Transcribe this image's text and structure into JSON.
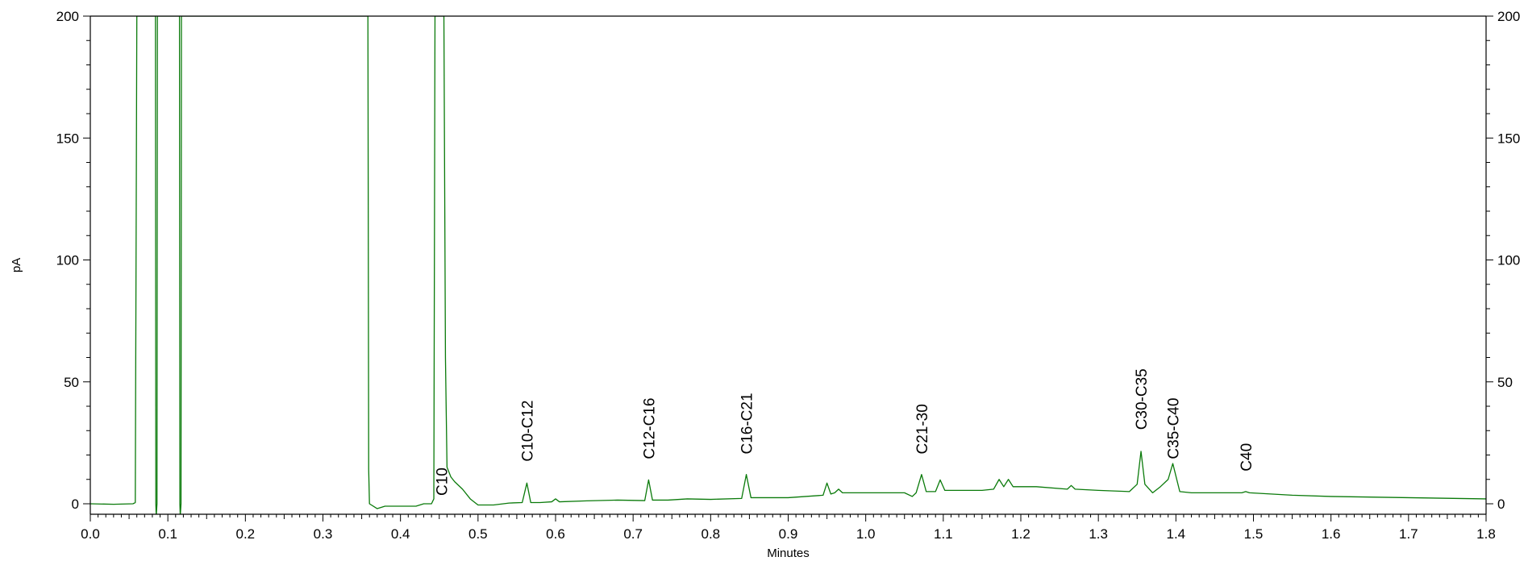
{
  "chart_data": {
    "type": "line",
    "title": "",
    "xlabel": "Minutes",
    "ylabel": "pA",
    "xlim": [
      0.0,
      1.8
    ],
    "ylim": [
      -5,
      200
    ],
    "x_ticks": [
      0.0,
      0.1,
      0.2,
      0.3,
      0.4,
      0.5,
      0.6,
      0.7,
      0.8,
      0.9,
      1.0,
      1.1,
      1.2,
      1.3,
      1.4,
      1.5,
      1.6,
      1.7,
      1.8
    ],
    "x_tick_labels": [
      "0.0",
      "0.1",
      "0.2",
      "0.3",
      "0.4",
      "0.5",
      "0.6",
      "0.7",
      "0.8",
      "0.9",
      "1.0",
      "1.1",
      "1.2",
      "1.3",
      "1.4",
      "1.5",
      "1.6",
      "1.7",
      "1.8"
    ],
    "y_ticks": [
      0,
      50,
      100,
      150,
      200
    ],
    "y_tick_labels": [
      "0",
      "50",
      "100",
      "150",
      "200"
    ],
    "right_axis_ticks": true,
    "grid": false,
    "line_color": "#0a7a0a",
    "series": [
      {
        "x": [
          0.0,
          0.03,
          0.055,
          0.058,
          0.06,
          0.0605,
          0.084,
          0.0845,
          0.085,
          0.086,
          0.0865,
          0.115,
          0.1155,
          0.116,
          0.117,
          0.1175,
          0.356,
          0.3565,
          0.357,
          0.358,
          0.359,
          0.36,
          0.37,
          0.38,
          0.39,
          0.4,
          0.41,
          0.42,
          0.43,
          0.44,
          0.443,
          0.4445,
          0.445,
          0.446,
          0.455,
          0.456,
          0.458,
          0.46,
          0.465,
          0.47,
          0.48,
          0.49,
          0.5,
          0.52,
          0.54,
          0.557,
          0.563,
          0.568,
          0.58,
          0.595,
          0.6,
          0.605,
          0.64,
          0.68,
          0.715,
          0.72,
          0.725,
          0.745,
          0.77,
          0.8,
          0.84,
          0.846,
          0.852,
          0.9,
          0.945,
          0.95,
          0.955,
          0.96,
          0.965,
          0.97,
          1.01,
          1.05,
          1.06,
          1.065,
          1.072,
          1.078,
          1.09,
          1.096,
          1.102,
          1.15,
          1.165,
          1.172,
          1.178,
          1.184,
          1.19,
          1.22,
          1.26,
          1.265,
          1.27,
          1.3,
          1.34,
          1.35,
          1.355,
          1.36,
          1.37,
          1.38,
          1.39,
          1.396,
          1.405,
          1.42,
          1.46,
          1.485,
          1.49,
          1.495,
          1.55,
          1.6,
          1.7,
          1.8
        ],
        "y": [
          0,
          -0.2,
          0,
          0.5,
          200,
          200,
          200,
          0,
          -5,
          0,
          200,
          200,
          0,
          -5,
          0,
          200,
          200,
          200,
          200,
          200,
          14,
          0,
          -2,
          -1,
          -1,
          -1,
          -1,
          -1,
          0,
          0,
          2,
          200,
          200,
          200,
          200,
          200,
          60,
          15,
          11,
          9,
          6,
          2,
          -0.5,
          -0.5,
          0.3,
          0.5,
          8.5,
          0.5,
          0.5,
          0.8,
          2,
          0.8,
          1.2,
          1.5,
          1.3,
          9.8,
          1.5,
          1.5,
          2,
          1.8,
          2.2,
          12,
          2.5,
          2.5,
          3.5,
          8.5,
          4,
          4.5,
          6,
          4.5,
          4.5,
          4.5,
          3,
          4.5,
          12,
          5,
          5,
          9.8,
          5.5,
          5.5,
          6,
          10,
          7,
          10,
          7,
          7,
          6,
          7.5,
          6,
          5.5,
          5,
          8,
          21.5,
          8,
          4.5,
          7,
          10,
          16.5,
          5,
          4.5,
          4.5,
          4.5,
          5,
          4.5,
          3.5,
          3,
          2.5,
          2
        ]
      }
    ],
    "annotations": [
      {
        "text": "C10",
        "x": 0.453,
        "y": 2
      },
      {
        "text": "C10-C12",
        "x": 0.563,
        "y": 16
      },
      {
        "text": "C12-C16",
        "x": 0.72,
        "y": 17
      },
      {
        "text": "C16-C21",
        "x": 0.846,
        "y": 19
      },
      {
        "text": "C21-30",
        "x": 1.072,
        "y": 19
      },
      {
        "text": "C30-C35",
        "x": 1.355,
        "y": 29
      },
      {
        "text": "C35-C40",
        "x": 1.396,
        "y": 17
      },
      {
        "text": "C40",
        "x": 1.49,
        "y": 12
      }
    ]
  }
}
